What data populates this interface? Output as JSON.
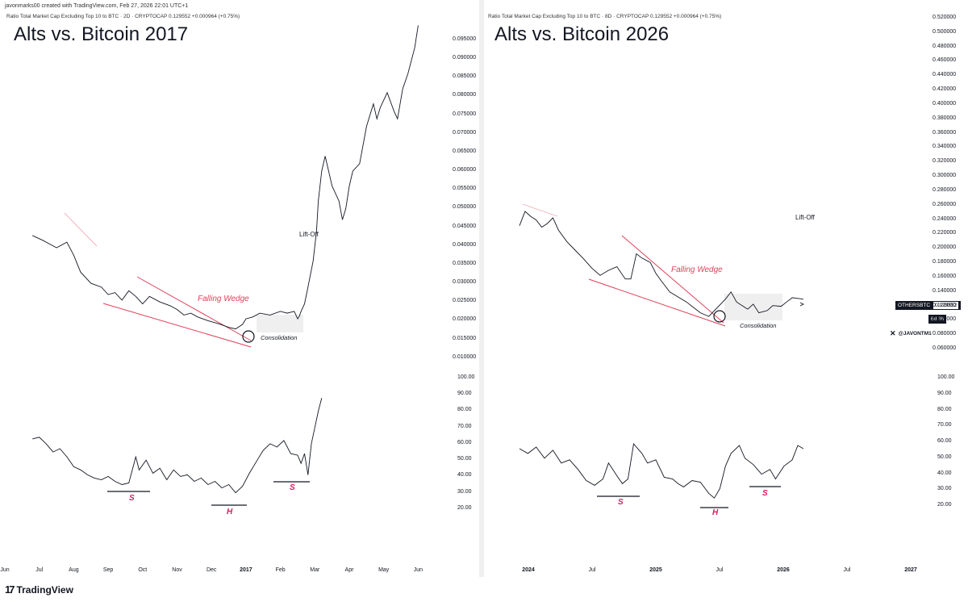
{
  "header": {
    "creator": "javonmarks00 created with TradingView.com, Feb 27, 2026 22:01 UTC+1"
  },
  "footer": {
    "brand": "TradingView",
    "logo_mark": "17"
  },
  "watermark_handle": "@JAVONTM1",
  "price_tag": {
    "symbol": "OTHERSBTC",
    "price": "0.129552",
    "countdown": "6d 3h"
  },
  "colors": {
    "line": "#131722",
    "wedge": "#e0405a",
    "shs": "#d81b60",
    "consolidation": "#e8e8e8"
  },
  "chart_data": [
    {
      "type": "line",
      "title": "Alts vs. Bitcoin 2017",
      "legend": "Ratio Total Market Cap Excluding Top 10 to BTC · 2D · CRYPTOCAP  0.129552  +0.000964 (+0.75%)",
      "x_ticks": [
        "Jun",
        "Jul",
        "Aug",
        "Sep",
        "Oct",
        "Nov",
        "Dec",
        "2017",
        "Feb",
        "Mar",
        "Apr",
        "May",
        "Jun"
      ],
      "x_ticks_bold": [
        "2017"
      ],
      "price_axis": {
        "ticks": [
          "0.095000",
          "0.090000",
          "0.085000",
          "0.080000",
          "0.075000",
          "0.070000",
          "0.065000",
          "0.060000",
          "0.055000",
          "0.050000",
          "0.045000",
          "0.040000",
          "0.035000",
          "0.030000",
          "0.025000",
          "0.020000",
          "0.015000",
          "0.010000"
        ],
        "ylim": [
          0.008,
          0.098
        ]
      },
      "price_series": {
        "x": [
          0.8,
          1.1,
          1.3,
          1.5,
          1.8,
          2.0,
          2.2,
          2.5,
          2.8,
          3.0,
          3.2,
          3.4,
          3.6,
          3.8,
          4.0,
          4.2,
          4.5,
          4.8,
          5.0,
          5.2,
          5.4,
          5.6,
          5.9,
          6.2,
          6.5,
          6.7,
          6.9,
          7.0,
          7.2,
          7.4,
          7.7,
          8.0,
          8.2,
          8.4,
          8.5,
          8.55,
          8.6,
          8.7,
          8.8,
          8.95,
          9.05,
          9.1,
          9.2,
          9.3,
          9.5,
          9.7,
          9.8,
          9.9,
          10.0,
          10.1,
          10.3,
          10.5,
          10.7,
          10.8,
          10.9,
          11.1,
          11.3,
          11.4,
          11.55,
          11.7,
          11.9,
          12.0
        ],
        "values": [
          0.0428,
          0.0415,
          0.0405,
          0.0395,
          0.041,
          0.0375,
          0.033,
          0.03,
          0.029,
          0.027,
          0.0275,
          0.0255,
          0.028,
          0.0265,
          0.0245,
          0.0265,
          0.025,
          0.024,
          0.023,
          0.0215,
          0.022,
          0.021,
          0.02,
          0.0192,
          0.0182,
          0.0178,
          0.019,
          0.0205,
          0.021,
          0.022,
          0.0215,
          0.0225,
          0.022,
          0.0225,
          0.0205,
          0.0212,
          0.0225,
          0.0245,
          0.029,
          0.036,
          0.044,
          0.052,
          0.06,
          0.064,
          0.056,
          0.052,
          0.047,
          0.05,
          0.056,
          0.06,
          0.062,
          0.072,
          0.078,
          0.074,
          0.077,
          0.081,
          0.076,
          0.074,
          0.082,
          0.086,
          0.093,
          0.099
        ]
      },
      "rsi_axis": {
        "ticks": [
          "100.00",
          "90.00",
          "80.00",
          "70.00",
          "60.00",
          "50.00",
          "40.00",
          "30.00",
          "20.00"
        ],
        "ylim": [
          15,
          100
        ]
      },
      "rsi_series": {
        "x": [
          0.8,
          1.0,
          1.2,
          1.4,
          1.6,
          1.8,
          2.0,
          2.2,
          2.4,
          2.6,
          2.8,
          3.0,
          3.2,
          3.4,
          3.6,
          3.8,
          3.9,
          4.1,
          4.3,
          4.5,
          4.7,
          4.9,
          5.1,
          5.3,
          5.5,
          5.7,
          5.9,
          6.1,
          6.3,
          6.5,
          6.7,
          6.9,
          7.1,
          7.3,
          7.5,
          7.7,
          7.9,
          8.1,
          8.3,
          8.5,
          8.6,
          8.7,
          8.8,
          8.9,
          9.0,
          9.1,
          9.2
        ],
        "values": [
          63,
          64,
          60,
          55,
          57,
          52,
          46,
          44,
          41,
          39,
          38,
          40,
          37,
          35,
          36,
          52,
          44,
          50,
          42,
          45,
          38,
          44,
          40,
          41,
          37,
          39,
          35,
          37,
          33,
          35,
          30,
          34,
          42,
          49,
          56,
          60,
          58,
          62,
          54,
          53,
          48,
          54,
          41,
          60,
          70,
          80,
          88
        ]
      },
      "annotations": {
        "pattern": "Falling Wedge",
        "consolidation": "Consolidation",
        "liftoff": "Lift-Off",
        "shoulder_left": "S",
        "head": "H",
        "shoulder_right": "S"
      }
    },
    {
      "type": "line",
      "title": "Alts vs. Bitcoin 2026",
      "legend": "Ratio Total Market Cap Excluding Top 10 to BTC · 8D · CRYPTOCAP  0.129552  +0.000964 (+0.75%)",
      "x_ticks": [
        "2024",
        "Jul",
        "2025",
        "Jul",
        "2026",
        "Jul",
        "2027"
      ],
      "x_ticks_bold": [
        "2024",
        "2025",
        "2026",
        "2027"
      ],
      "price_axis": {
        "ticks": [
          "0.520000",
          "0.500000",
          "0.480000",
          "0.460000",
          "0.440000",
          "0.420000",
          "0.400000",
          "0.380000",
          "0.360000",
          "0.340000",
          "0.320000",
          "0.300000",
          "0.280000",
          "0.260000",
          "0.240000",
          "0.220000",
          "0.200000",
          "0.180000",
          "0.160000",
          "0.140000",
          "0.120000",
          "0.100000",
          "0.080000",
          "0.060000"
        ],
        "ylim": [
          0.05,
          0.53
        ]
      },
      "price_series": {
        "x": [
          0.0,
          0.1,
          0.2,
          0.3,
          0.4,
          0.5,
          0.6,
          0.7,
          0.85,
          1.0,
          1.15,
          1.3,
          1.45,
          1.6,
          1.75,
          1.9,
          2.0,
          2.1,
          2.2,
          2.35,
          2.45,
          2.55,
          2.7,
          2.85,
          3.0,
          3.1,
          3.25,
          3.4,
          3.55,
          3.7,
          3.8,
          3.9,
          4.0,
          4.1,
          4.2,
          4.3,
          4.45,
          4.55,
          4.7,
          4.8,
          4.9,
          5.0,
          5.1
        ],
        "values": [
          0.232,
          0.252,
          0.245,
          0.24,
          0.23,
          0.235,
          0.243,
          0.226,
          0.21,
          0.198,
          0.186,
          0.173,
          0.163,
          0.17,
          0.175,
          0.158,
          0.158,
          0.193,
          0.187,
          0.181,
          0.166,
          0.155,
          0.14,
          0.133,
          0.126,
          0.12,
          0.111,
          0.106,
          0.118,
          0.13,
          0.14,
          0.126,
          0.121,
          0.116,
          0.123,
          0.111,
          0.114,
          0.121,
          0.12,
          0.126,
          0.132,
          0.131,
          0.13
        ]
      },
      "rsi_axis": {
        "ticks": [
          "100.00",
          "90.00",
          "80.00",
          "70.00",
          "60.00",
          "50.00",
          "40.00",
          "30.00",
          "20.00"
        ],
        "ylim": [
          15,
          100
        ]
      },
      "rsi_series": {
        "x": [
          0.0,
          0.15,
          0.3,
          0.45,
          0.6,
          0.75,
          0.9,
          1.05,
          1.2,
          1.35,
          1.5,
          1.6,
          1.75,
          1.85,
          1.95,
          2.05,
          2.2,
          2.3,
          2.45,
          2.6,
          2.75,
          2.85,
          2.95,
          3.1,
          3.25,
          3.4,
          3.5,
          3.6,
          3.7,
          3.8,
          3.95,
          4.05,
          4.2,
          4.35,
          4.5,
          4.6,
          4.75,
          4.9,
          5.0,
          5.1
        ],
        "values": [
          56,
          53,
          57,
          50,
          55,
          47,
          49,
          43,
          36,
          33,
          37,
          47,
          39,
          34,
          37,
          59,
          53,
          47,
          49,
          38,
          37,
          34,
          32,
          36,
          35,
          28,
          25,
          31,
          45,
          53,
          58,
          50,
          46,
          40,
          43,
          37,
          45,
          49,
          58,
          56
        ]
      },
      "annotations": {
        "pattern": "Falling Wedge",
        "consolidation": "Consolidation",
        "liftoff": "Lift-Off",
        "shoulder_left": "S",
        "head": "H",
        "shoulder_right": "S"
      }
    }
  ]
}
